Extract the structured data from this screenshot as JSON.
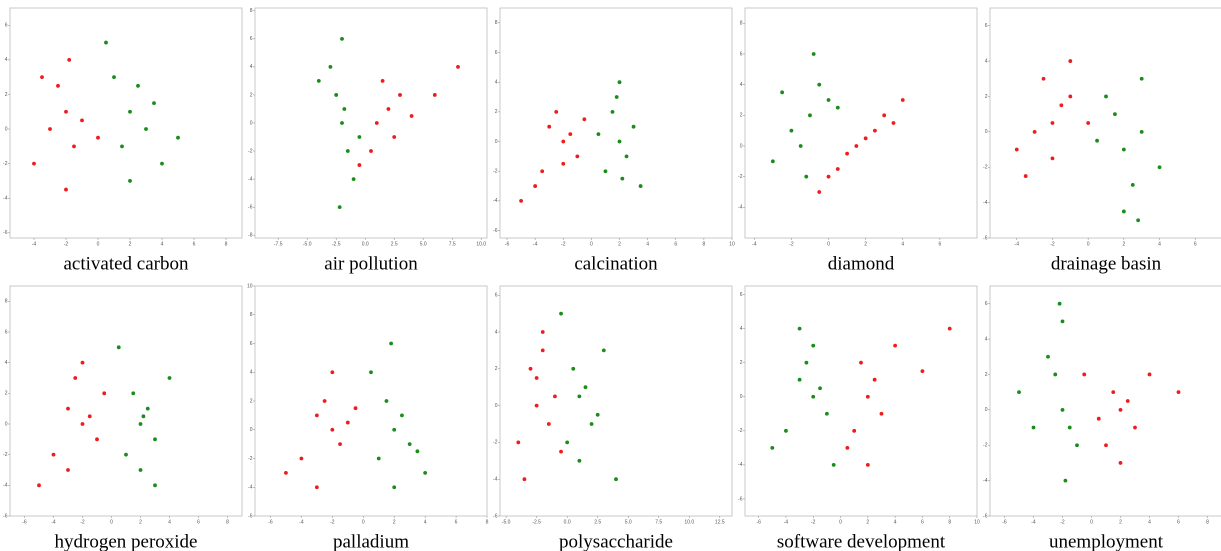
{
  "chart_data": [
    {
      "type": "scatter",
      "title": "activated carbon",
      "xlim": [
        -5.5,
        9
      ],
      "ylim": [
        -6.3,
        7
      ],
      "xticks": [
        -4,
        -2,
        0,
        2,
        4,
        6,
        8
      ],
      "yticks": [
        -6,
        -4,
        -2,
        0,
        2,
        4,
        6
      ],
      "series": [
        {
          "color": "#ee1c1c",
          "x": [
            -3,
            -2,
            -1.5,
            -4,
            -2.5,
            -1,
            -3.5,
            -2,
            0,
            -1.8
          ],
          "y": [
            0,
            1,
            -1,
            -2,
            2.5,
            0.5,
            3,
            -3.5,
            -0.5,
            4
          ]
        },
        {
          "color": "#1a8c1a",
          "x": [
            2,
            1.5,
            3,
            2.5,
            1,
            4,
            0.5,
            2,
            3.5,
            5
          ],
          "y": [
            1,
            -1,
            0,
            2.5,
            3,
            -2,
            5,
            -3,
            1.5,
            -0.5
          ]
        }
      ]
    },
    {
      "type": "scatter",
      "title": "air pollution",
      "xlim": [
        -9.5,
        10.5
      ],
      "ylim": [
        -8.2,
        8.2
      ],
      "xticks": [
        -7.5,
        {
          "value": -5,
          "label": "-5.0"
        },
        -2.5,
        {
          "value": 0,
          "label": "0.0"
        },
        2.5,
        {
          "value": 5,
          "label": "5.0"
        },
        7.5,
        {
          "value": 10,
          "label": "10.0"
        }
      ],
      "yticks": [
        -8,
        -6,
        -4,
        -2,
        0,
        2,
        4,
        6,
        8
      ],
      "series": [
        {
          "color": "#1a8c1a",
          "x": [
            -2,
            -2.5,
            -1.5,
            -3,
            -1,
            -2,
            -2.2,
            -1.8,
            -4,
            -0.5
          ],
          "y": [
            0,
            2,
            -2,
            4,
            -4,
            6,
            -6,
            1,
            3,
            -1
          ]
        },
        {
          "color": "#ee1c1c",
          "x": [
            1,
            2,
            0.5,
            3,
            4,
            1.5,
            6,
            -0.5,
            2.5,
            8
          ],
          "y": [
            0,
            1,
            -2,
            2,
            0.5,
            3,
            2,
            -3,
            -1,
            4
          ]
        }
      ]
    },
    {
      "type": "scatter",
      "title": "calcination",
      "xlim": [
        -6.5,
        10
      ],
      "ylim": [
        -6.5,
        9
      ],
      "xticks": [
        -6,
        -4,
        -2,
        0,
        2,
        4,
        6,
        8,
        10
      ],
      "yticks": [
        -6,
        -4,
        -2,
        0,
        2,
        4,
        6,
        8
      ],
      "series": [
        {
          "color": "#ee1c1c",
          "x": [
            -2,
            -3,
            -1,
            -4,
            -2.5,
            -1.5,
            -5,
            -0.5,
            -3.5,
            -2
          ],
          "y": [
            0,
            1,
            -1,
            -3,
            2,
            0.5,
            -4,
            1.5,
            -2,
            -1.5
          ]
        },
        {
          "color": "#1a8c1a",
          "x": [
            2,
            1.5,
            2.5,
            3,
            1,
            2,
            3.5,
            0.5,
            2.2,
            1.8
          ],
          "y": [
            0,
            2,
            -1,
            1,
            -2,
            4,
            -3,
            0.5,
            -2.5,
            3
          ]
        }
      ]
    },
    {
      "type": "scatter",
      "title": "diamond",
      "xlim": [
        -4.5,
        8
      ],
      "ylim": [
        -6,
        9
      ],
      "xticks": [
        -4,
        -2,
        0,
        2,
        4,
        6
      ],
      "yticks": [
        -4,
        -2,
        0,
        2,
        4,
        6,
        8
      ],
      "series": [
        {
          "color": "#1a8c1a",
          "x": [
            -1,
            -0.5,
            -2,
            0,
            -1.5,
            -0.8,
            -3,
            0.5,
            -1.2,
            -2.5
          ],
          "y": [
            2,
            4,
            1,
            3,
            0,
            6,
            -1,
            2.5,
            -2,
            3.5
          ]
        },
        {
          "color": "#ee1c1c",
          "x": [
            1.5,
            0.5,
            2.5,
            3,
            1,
            4,
            -0.5,
            2,
            3.5,
            0
          ],
          "y": [
            0,
            -1.5,
            1,
            2,
            -0.5,
            3,
            -3,
            0.5,
            1.5,
            -2
          ]
        }
      ]
    },
    {
      "type": "scatter",
      "title": "drainage basin",
      "xlim": [
        -5.5,
        7.5
      ],
      "ylim": [
        -6,
        7
      ],
      "xticks": [
        -4,
        -2,
        0,
        2,
        4,
        6
      ],
      "yticks": [
        -6,
        -4,
        -2,
        0,
        2,
        4,
        6
      ],
      "series": [
        {
          "color": "#ee1c1c",
          "x": [
            -2,
            -3,
            -1,
            -4,
            -2.5,
            -1.5,
            -3.5,
            0,
            -2,
            -1
          ],
          "y": [
            0.5,
            0,
            2,
            -1,
            3,
            1.5,
            -2.5,
            0.5,
            -1.5,
            4
          ]
        },
        {
          "color": "#1a8c1a",
          "x": [
            2,
            1.5,
            3,
            2.5,
            1,
            4,
            0.5,
            2,
            3,
            2.8
          ],
          "y": [
            -1,
            1,
            0,
            -3,
            2,
            -2,
            -0.5,
            -4.5,
            3,
            -5
          ]
        }
      ]
    },
    {
      "type": "scatter",
      "title": "hydrogen peroxide",
      "xlim": [
        -7,
        9
      ],
      "ylim": [
        -6,
        9
      ],
      "xticks": [
        -6,
        -4,
        -2,
        0,
        2,
        4,
        6,
        8
      ],
      "yticks": [
        -6,
        -4,
        -2,
        0,
        2,
        4,
        6,
        8
      ],
      "series": [
        {
          "color": "#ee1c1c",
          "x": [
            -2,
            -3,
            -1,
            -4,
            -2.5,
            -1.5,
            -5,
            -0.5,
            -3,
            -2
          ],
          "y": [
            0,
            1,
            -1,
            -2,
            3,
            0.5,
            -4,
            2,
            -3,
            4
          ]
        },
        {
          "color": "#1a8c1a",
          "x": [
            2,
            1.5,
            3,
            2.5,
            1,
            4,
            0.5,
            2,
            3,
            2.2
          ],
          "y": [
            0,
            2,
            -1,
            1,
            -2,
            3,
            5,
            -3,
            -4,
            0.5
          ]
        }
      ]
    },
    {
      "type": "scatter",
      "title": "palladium",
      "xlim": [
        -7,
        8
      ],
      "ylim": [
        -6,
        10
      ],
      "xticks": [
        -6,
        -4,
        -2,
        0,
        2,
        4,
        6,
        8
      ],
      "yticks": [
        -6,
        -4,
        -2,
        0,
        2,
        4,
        6,
        8,
        10
      ],
      "series": [
        {
          "color": "#ee1c1c",
          "x": [
            -2,
            -3,
            -1.5,
            -4,
            -2.5,
            -1,
            -5,
            -0.5,
            -3,
            -2
          ],
          "y": [
            0,
            1,
            -1,
            -2,
            2,
            0.5,
            -3,
            1.5,
            -4,
            4
          ]
        },
        {
          "color": "#1a8c1a",
          "x": [
            2,
            1.5,
            3,
            2.5,
            1,
            4,
            0.5,
            2,
            3.5,
            1.8
          ],
          "y": [
            0,
            2,
            -1,
            1,
            -2,
            -3,
            4,
            -4,
            -1.5,
            6
          ]
        }
      ]
    },
    {
      "type": "scatter",
      "title": "polysaccharide",
      "xlim": [
        -5.5,
        13.5
      ],
      "ylim": [
        -6,
        6.5
      ],
      "xticks": [
        {
          "value": -5,
          "label": "-5.0"
        },
        -2.5,
        {
          "value": 0,
          "label": "0.0"
        },
        2.5,
        {
          "value": 5,
          "label": "5.0"
        },
        7.5,
        {
          "value": 10,
          "label": "10.0"
        },
        12.5
      ],
      "yticks": [
        -6,
        -4,
        -2,
        0,
        2,
        4,
        6
      ],
      "series": [
        {
          "color": "#ee1c1c",
          "x": [
            -2.5,
            -3,
            -1.5,
            -4,
            -2,
            -1,
            -3.5,
            -2.5,
            -0.5,
            -2
          ],
          "y": [
            0,
            2,
            -1,
            -2,
            3,
            0.5,
            -4,
            1.5,
            -2.5,
            4
          ]
        },
        {
          "color": "#1a8c1a",
          "x": [
            1,
            0.5,
            2,
            1.5,
            0,
            3,
            -0.5,
            1,
            2.5,
            4
          ],
          "y": [
            0.5,
            2,
            -1,
            1,
            -2,
            3,
            5,
            -3,
            -0.5,
            -4
          ]
        }
      ]
    },
    {
      "type": "scatter",
      "title": "software development",
      "xlim": [
        -7,
        10
      ],
      "ylim": [
        -7,
        6.5
      ],
      "xticks": [
        -6,
        -4,
        -2,
        0,
        2,
        4,
        6,
        8,
        10
      ],
      "yticks": [
        -6,
        -4,
        -2,
        0,
        2,
        4,
        6
      ],
      "series": [
        {
          "color": "#1a8c1a",
          "x": [
            -2,
            -3,
            -1,
            -4,
            -2.5,
            -1.5,
            -5,
            -0.5,
            -2,
            -3
          ],
          "y": [
            0,
            1,
            -1,
            -2,
            2,
            0.5,
            -3,
            -4,
            3,
            4
          ]
        },
        {
          "color": "#ee1c1c",
          "x": [
            2,
            1.5,
            3,
            2.5,
            1,
            4,
            0.5,
            6,
            2,
            8
          ],
          "y": [
            0,
            2,
            -1,
            1,
            -2,
            3,
            -3,
            1.5,
            -4,
            4
          ]
        }
      ]
    },
    {
      "type": "scatter",
      "title": "unemployment",
      "xlim": [
        -7,
        9
      ],
      "ylim": [
        -6,
        7
      ],
      "xticks": [
        -6,
        -4,
        -2,
        0,
        2,
        4,
        6,
        8
      ],
      "yticks": [
        -6,
        -4,
        -2,
        0,
        2,
        4,
        6
      ],
      "series": [
        {
          "color": "#1a8c1a",
          "x": [
            -2,
            -2.5,
            -1.5,
            -3,
            -1,
            -2,
            -4,
            -1.8,
            -2.2,
            -5
          ],
          "y": [
            0,
            2,
            -1,
            3,
            -2,
            5,
            -1,
            -4,
            6,
            1
          ]
        },
        {
          "color": "#ee1c1c",
          "x": [
            2,
            1.5,
            3,
            2.5,
            1,
            4,
            0.5,
            6,
            2,
            -0.5
          ],
          "y": [
            0,
            1,
            -1,
            0.5,
            -2,
            2,
            -0.5,
            1,
            -3,
            2
          ]
        }
      ]
    }
  ]
}
